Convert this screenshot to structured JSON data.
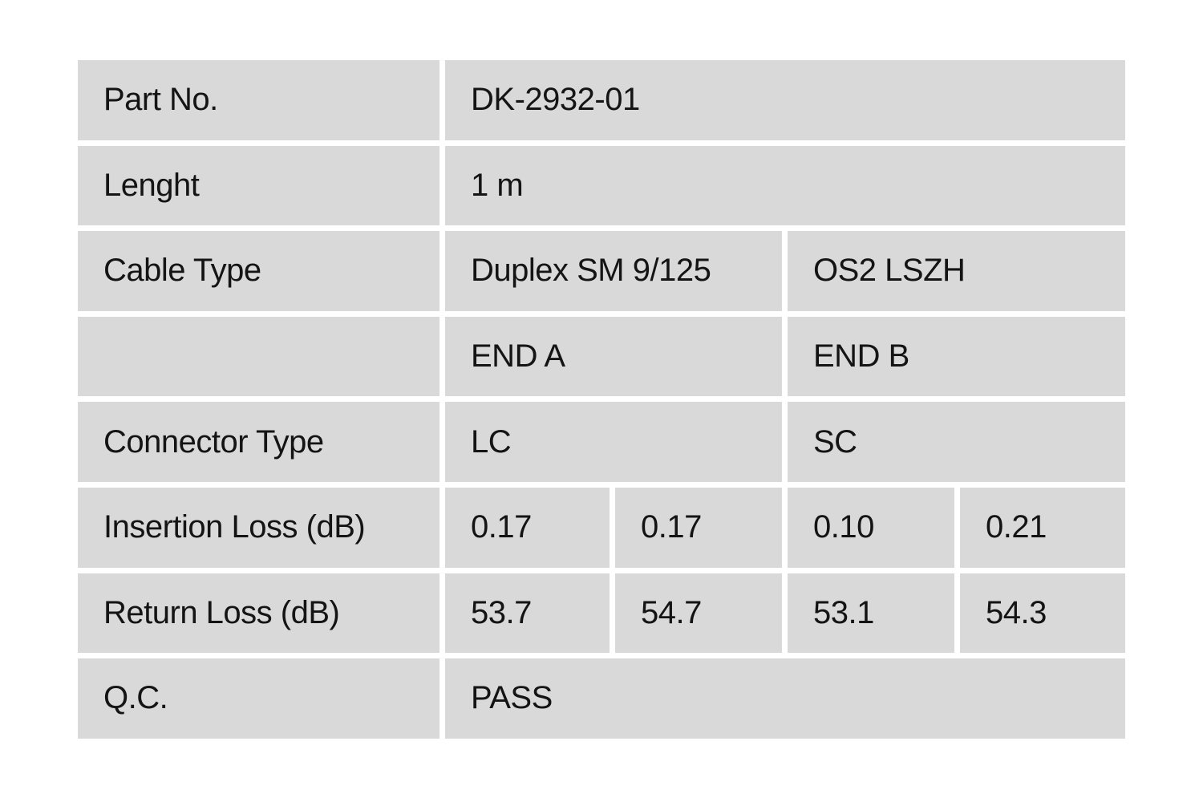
{
  "colors": {
    "page_bg": "#ffffff",
    "cell_bg": "#d9d9d9",
    "text": "#141414"
  },
  "table": {
    "part_no": {
      "label": "Part No.",
      "value": "DK-2932-01"
    },
    "length": {
      "label": "Lenght",
      "value": "1 m"
    },
    "cable_type": {
      "label": "Cable Type",
      "value_left": "Duplex SM 9/125",
      "value_right": "OS2 LSZH"
    },
    "ends": {
      "label": "",
      "end_a": "END A",
      "end_b": "END B"
    },
    "connector_type": {
      "label": "Connector Type",
      "end_a": "LC",
      "end_b": "SC"
    },
    "insertion_loss": {
      "label": "Insertion Loss (dB)",
      "values": [
        "0.17",
        "0.17",
        "0.10",
        "0.21"
      ]
    },
    "return_loss": {
      "label": "Return Loss (dB)",
      "values": [
        "53.7",
        "54.7",
        "53.1",
        "54.3"
      ]
    },
    "qc": {
      "label": "Q.C.",
      "value": "PASS"
    }
  }
}
